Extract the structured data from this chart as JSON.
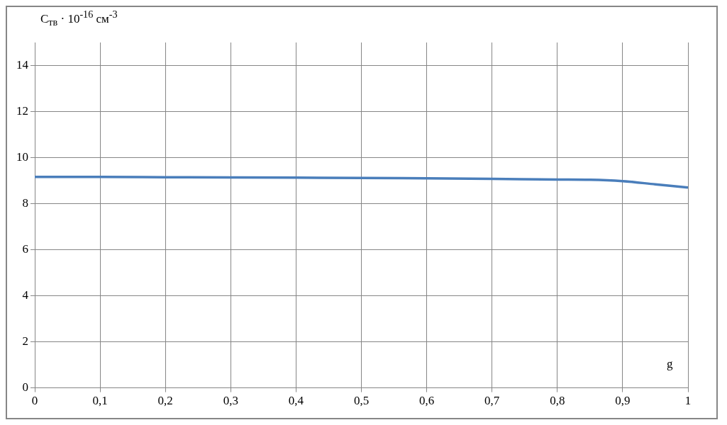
{
  "chart_data": {
    "type": "line",
    "xlabel": "g",
    "ylabel": "C$_{тв}$ · 10$^{-16}$ см$^{-3}$",
    "x": [
      0,
      0.1,
      0.2,
      0.3,
      0.4,
      0.5,
      0.6,
      0.7,
      0.8,
      0.85,
      0.9,
      0.95,
      1
    ],
    "series": [
      {
        "color": "#4a7ebb",
        "values": [
          9.16,
          9.16,
          9.15,
          9.14,
          9.13,
          9.12,
          9.1,
          9.08,
          9.05,
          9.04,
          8.98,
          8.84,
          8.7
        ]
      }
    ],
    "xlim": [
      0,
      1
    ],
    "xticks": [
      0,
      {
        "value": 0.1,
        "label": "0,1"
      },
      {
        "value": 0.2,
        "label": "0,2"
      },
      {
        "value": 0.3,
        "label": "0,3"
      },
      {
        "value": 0.4,
        "label": "0,4"
      },
      {
        "value": 0.5,
        "label": "0,5"
      },
      {
        "value": 0.6,
        "label": "0,6"
      },
      {
        "value": 0.7,
        "label": "0,7"
      },
      {
        "value": 0.8,
        "label": "0,8"
      },
      {
        "value": 0.9,
        "label": "0,9"
      },
      1
    ],
    "ylim": [
      0,
      15
    ],
    "yticks": [
      0,
      2,
      4,
      6,
      8,
      10,
      12,
      14
    ],
    "grid": true,
    "legend": false,
    "marker": "none",
    "line_style": "solid"
  }
}
